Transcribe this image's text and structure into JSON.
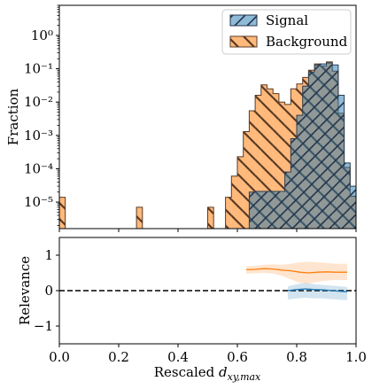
{
  "chart_data": [
    {
      "type": "histogram",
      "panel": "top",
      "ylabel": "Fraction",
      "yscale": "log",
      "ylim": [
        1.6e-06,
        8.0
      ],
      "xlim": [
        0.0,
        1.0
      ],
      "yticks": [
        {
          "value": 1e-05,
          "label": "10⁻⁵"
        },
        {
          "value": 0.0001,
          "label": "10⁻⁴"
        },
        {
          "value": 0.001,
          "label": "10⁻³"
        },
        {
          "value": 0.01,
          "label": "10⁻²"
        },
        {
          "value": 0.1,
          "label": "10⁻¹"
        },
        {
          "value": 1,
          "label": "10⁰"
        }
      ],
      "bin_width": 0.02,
      "legend_position": "top-right",
      "series": [
        {
          "name": "Signal",
          "color": "#1f77b4",
          "hatch": "/",
          "bin_starts": [
            0.64,
            0.66,
            0.68,
            0.7,
            0.72,
            0.74,
            0.76,
            0.78,
            0.8,
            0.82,
            0.84,
            0.86,
            0.88,
            0.9,
            0.92,
            0.94,
            0.96,
            0.98
          ],
          "values": [
            2e-05,
            2.1e-05,
            2.1e-05,
            2.1e-05,
            2.1e-05,
            2.1e-05,
            8e-05,
            0.0008,
            0.004,
            0.03,
            0.08,
            0.13,
            0.14,
            0.15,
            0.13,
            0.016,
            0.00015,
            3e-05
          ]
        },
        {
          "name": "Background",
          "color": "#ff7f0e",
          "hatch": "\\",
          "bin_starts": [
            0.0,
            0.26,
            0.5,
            0.56,
            0.58,
            0.6,
            0.62,
            0.64,
            0.66,
            0.68,
            0.7,
            0.72,
            0.74,
            0.76,
            0.78,
            0.8,
            0.82,
            0.84,
            0.86,
            0.88,
            0.9,
            0.92,
            0.94,
            0.96,
            0.98
          ],
          "values": [
            1.4e-05,
            7e-06,
            7e-06,
            1.4e-05,
            6e-05,
            0.00023,
            0.0013,
            0.0055,
            0.016,
            0.033,
            0.025,
            0.018,
            0.01,
            0.0085,
            0.025,
            0.035,
            0.055,
            0.09,
            0.14,
            0.12,
            0.16,
            0.085,
            0.0046,
            0.00011,
            1.5e-05
          ]
        }
      ]
    },
    {
      "type": "line",
      "panel": "bottom",
      "xlabel": "Rescaled d_{xy,max}",
      "ylabel": "Relevance",
      "xlim": [
        0.0,
        1.0
      ],
      "ylim": [
        -1.5,
        1.5
      ],
      "xticks": [
        {
          "value": 0.0,
          "label": "0.0"
        },
        {
          "value": 0.2,
          "label": "0.2"
        },
        {
          "value": 0.4,
          "label": "0.4"
        },
        {
          "value": 0.6,
          "label": "0.6"
        },
        {
          "value": 0.8,
          "label": "0.8"
        },
        {
          "value": 1.0,
          "label": "1.0"
        }
      ],
      "yticks": [
        {
          "value": -1,
          "label": "−1"
        },
        {
          "value": 0,
          "label": "0"
        },
        {
          "value": 1,
          "label": "1"
        }
      ],
      "reference_line": {
        "y": 0,
        "style": "dashed",
        "color": "#000000"
      },
      "series": [
        {
          "name": "Background",
          "color": "#ff7f0e",
          "x": [
            0.63,
            0.66,
            0.69,
            0.72,
            0.75,
            0.78,
            0.81,
            0.84,
            0.87,
            0.9,
            0.93,
            0.97
          ],
          "y": [
            0.59,
            0.6,
            0.62,
            0.61,
            0.58,
            0.56,
            0.52,
            0.5,
            0.52,
            0.53,
            0.52,
            0.52
          ],
          "band_low": [
            0.48,
            0.49,
            0.5,
            0.48,
            0.42,
            0.32,
            0.22,
            0.2,
            0.25,
            0.28,
            0.3,
            0.3
          ],
          "band_high": [
            0.68,
            0.7,
            0.73,
            0.74,
            0.73,
            0.76,
            0.8,
            0.82,
            0.8,
            0.78,
            0.76,
            0.76
          ]
        },
        {
          "name": "Signal",
          "color": "#1f77b4",
          "x": [
            0.77,
            0.8,
            0.83,
            0.86,
            0.89,
            0.92,
            0.95,
            0.97
          ],
          "y": [
            0.0,
            0.03,
            0.05,
            0.03,
            0.02,
            0.0,
            -0.02,
            -0.03
          ],
          "band_low": [
            -0.25,
            -0.22,
            -0.2,
            -0.22,
            -0.22,
            -0.24,
            -0.26,
            -0.27
          ],
          "band_high": [
            0.12,
            0.18,
            0.22,
            0.18,
            0.16,
            0.14,
            0.12,
            0.1
          ]
        }
      ]
    }
  ]
}
